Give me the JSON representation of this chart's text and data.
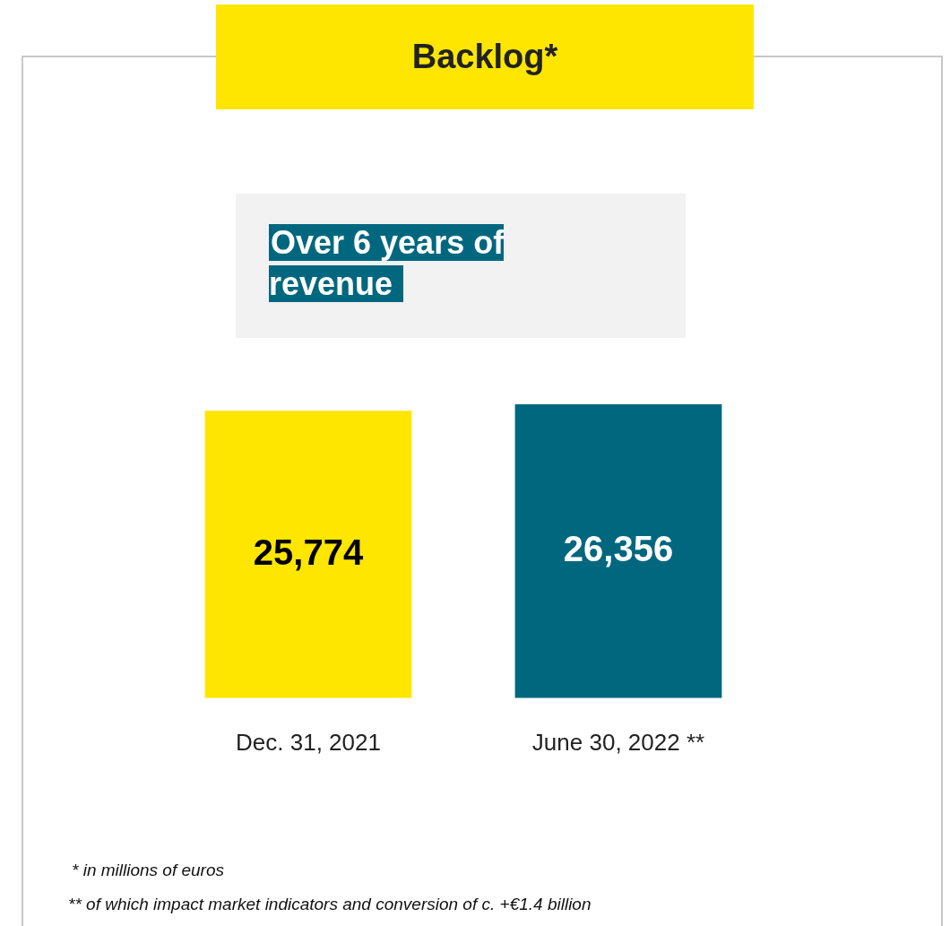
{
  "chart_data": {
    "type": "bar",
    "title": "Backlog*",
    "categories": [
      "Dec. 31, 2021",
      "June 30, 2022 **"
    ],
    "values": [
      25774,
      26356
    ],
    "colors": [
      "#ffe600",
      "#00677f"
    ],
    "value_labels": [
      "25,774",
      "26,356"
    ],
    "grid": false,
    "legend": false,
    "annotations": [
      "Over 6 years of revenue",
      "* in millions of euros",
      "** of which impact market indicators and conversion of c. +€1.4 billion"
    ]
  }
}
